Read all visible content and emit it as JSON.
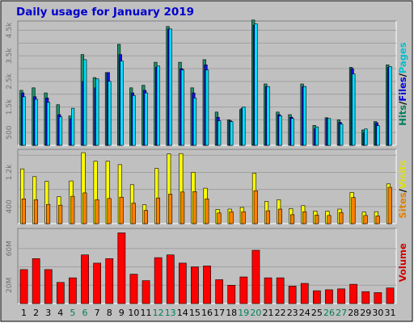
{
  "chart_data": {
    "type": "bar",
    "title": "Daily usage for January 2019",
    "categories": [
      "1",
      "2",
      "3",
      "4",
      "5",
      "6",
      "7",
      "8",
      "9",
      "10",
      "11",
      "12",
      "13",
      "14",
      "15",
      "16",
      "17",
      "18",
      "19",
      "20",
      "21",
      "22",
      "23",
      "24",
      "25",
      "26",
      "27",
      "28",
      "29",
      "30",
      "31"
    ],
    "weekend_days": [
      "5",
      "6",
      "12",
      "13",
      "19",
      "20",
      "26",
      "27"
    ],
    "panels": [
      {
        "name": "hits-files-pages",
        "ylim": [
          0,
          4800
        ],
        "ticks": [
          "500",
          "1.5k",
          "2.5k",
          "3.5k",
          "4.5k"
        ],
        "tick_values": [
          500,
          1500,
          2500,
          3500,
          4500
        ],
        "labels": [
          {
            "text": "Hits",
            "color": "#00805c"
          },
          {
            "text": "/",
            "color": "#000000"
          },
          {
            "text": "Files",
            "color": "#0000d8"
          },
          {
            "text": "/",
            "color": "#000000"
          },
          {
            "text": "Pages",
            "color": "#00c0d0"
          }
        ],
        "series": [
          {
            "name": "Hits",
            "color": "#1f8f6b",
            "values": [
              2150,
              2250,
              2050,
              1590,
              1150,
              3550,
              2650,
              2850,
              3950,
              2250,
              2350,
              3250,
              4650,
              3250,
              2250,
              3350,
              1300,
              1000,
              1400,
              4900,
              2400,
              1300,
              1200,
              2400,
              780,
              1080,
              1000,
              3050,
              600,
              930,
              3150
            ]
          },
          {
            "name": "Files",
            "color": "#1010e0",
            "values": [
              2050,
              1900,
              1850,
              1200,
              1050,
              2500,
              2250,
              2850,
              3550,
              2050,
              2150,
              3050,
              4550,
              3000,
              2050,
              3150,
              1100,
              960,
              1450,
              4700,
              2300,
              1200,
              1100,
              2300,
              650,
              1050,
              900,
              3000,
              500,
              880,
              3050
            ]
          },
          {
            "name": "Pages",
            "color": "#00e0ff",
            "values": [
              1900,
              1800,
              1680,
              1110,
              1450,
              3350,
              2600,
              2500,
              3300,
              1950,
              2050,
              3100,
              4550,
              2950,
              1850,
              2950,
              960,
              930,
              1500,
              4750,
              2300,
              1150,
              1050,
              2300,
              720,
              1050,
              830,
              2790,
              640,
              770,
              3080
            ]
          }
        ]
      },
      {
        "name": "sites-visits",
        "ylim": [
          0,
          1700
        ],
        "ticks": [
          "400",
          "1.2k"
        ],
        "tick_values": [
          400,
          1200
        ],
        "labels": [
          {
            "text": "Sites",
            "color": "#e08000"
          },
          {
            "text": "/",
            "color": "#000000"
          },
          {
            "text": "Visits",
            "color": "#e0e000"
          }
        ],
        "series": [
          {
            "name": "Visits",
            "color": "#ffff00",
            "values": [
              1280,
              1100,
              990,
              630,
              1000,
              1660,
              1460,
              1460,
              1380,
              910,
              440,
              1290,
              1630,
              1640,
              1200,
              830,
              330,
              340,
              380,
              1180,
              520,
              560,
              350,
              420,
              290,
              290,
              340,
              730,
              270,
              280,
              930
            ]
          },
          {
            "name": "Sites",
            "color": "#ff8000",
            "values": [
              580,
              560,
              450,
              430,
              640,
              720,
              560,
              590,
              620,
              480,
              310,
              600,
              690,
              740,
              750,
              580,
              250,
              280,
              280,
              770,
              300,
              340,
              210,
              280,
              200,
              190,
              260,
              610,
              190,
              180,
              850
            ]
          }
        ]
      },
      {
        "name": "volume",
        "ylim": [
          0,
          80
        ],
        "ticks": [
          "20M",
          "60M"
        ],
        "tick_values": [
          20,
          60
        ],
        "labels": [
          {
            "text": "Volume",
            "color": "#d00000"
          }
        ],
        "series": [
          {
            "name": "Volume",
            "color": "#ff0000",
            "values": [
              37,
              49,
              37,
              23,
              28,
              53,
              44,
              49,
              77,
              32,
              25,
              50,
              53,
              44,
              40,
              41,
              26,
              20,
              29,
              58,
              28,
              28,
              19,
              22,
              14,
              15,
              16,
              21,
              13,
              12,
              17
            ]
          }
        ]
      }
    ]
  }
}
